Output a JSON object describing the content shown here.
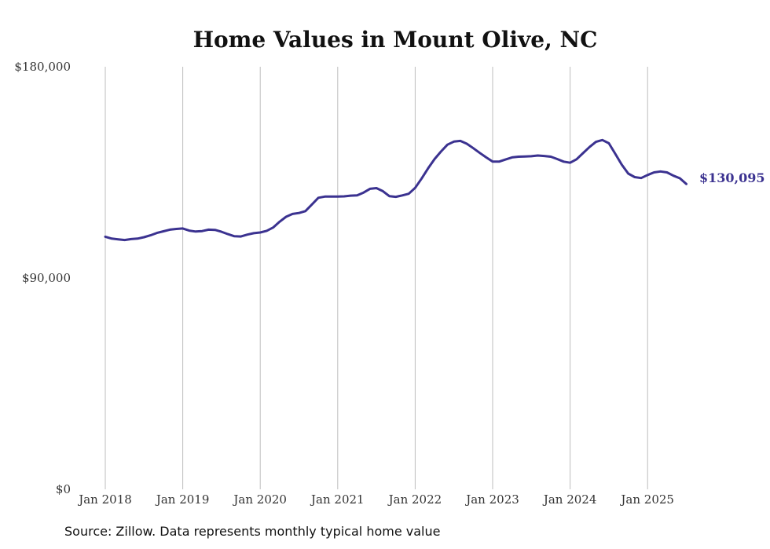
{
  "chart_data": {
    "type": "line",
    "title": "Home Values in Mount Olive, NC",
    "xlabel": "",
    "ylabel": "",
    "x_ticks": [
      "Jan 2018",
      "Jan 2019",
      "Jan 2020",
      "Jan 2021",
      "Jan 2022",
      "Jan 2023",
      "Jan 2024",
      "Jan 2025"
    ],
    "y_ticks": [
      "$0",
      "$90,000",
      "$180,000"
    ],
    "ylim": [
      0,
      180000
    ],
    "grid": "vertical",
    "line_color": "#3b3290",
    "end_label": "$130,095",
    "series": [
      {
        "x": [
          "2018-01",
          "2018-02",
          "2018-03",
          "2018-04",
          "2018-05",
          "2018-06",
          "2018-07",
          "2018-08",
          "2018-09",
          "2018-10",
          "2018-11",
          "2018-12",
          "2019-01",
          "2019-02",
          "2019-03",
          "2019-04",
          "2019-05",
          "2019-06",
          "2019-07",
          "2019-08",
          "2019-09",
          "2019-10",
          "2019-11",
          "2019-12",
          "2020-01",
          "2020-02",
          "2020-03",
          "2020-04",
          "2020-05",
          "2020-06",
          "2020-07",
          "2020-08",
          "2020-09",
          "2020-10",
          "2020-11",
          "2020-12",
          "2021-01",
          "2021-02",
          "2021-03",
          "2021-04",
          "2021-05",
          "2021-06",
          "2021-07",
          "2021-08",
          "2021-09",
          "2021-10",
          "2021-11",
          "2021-12",
          "2022-01",
          "2022-02",
          "2022-03",
          "2022-04",
          "2022-05",
          "2022-06",
          "2022-07",
          "2022-08",
          "2022-09",
          "2022-10",
          "2022-11",
          "2022-12",
          "2023-01",
          "2023-02",
          "2023-03",
          "2023-04",
          "2023-05",
          "2023-06",
          "2023-07",
          "2023-08",
          "2023-09",
          "2023-10",
          "2023-11",
          "2023-12",
          "2024-01",
          "2024-02",
          "2024-03",
          "2024-04",
          "2024-05",
          "2024-06",
          "2024-07",
          "2024-08",
          "2024-09",
          "2024-10",
          "2024-11",
          "2024-12",
          "2025-01",
          "2025-02",
          "2025-03",
          "2025-04",
          "2025-05",
          "2025-06",
          "2025-07"
        ],
        "values": [
          107600,
          106800,
          106500,
          106200,
          106600,
          106800,
          107400,
          108200,
          109200,
          109900,
          110600,
          110900,
          111100,
          110200,
          109800,
          110000,
          110600,
          110500,
          109700,
          108700,
          107800,
          107700,
          108500,
          109100,
          109400,
          110100,
          111500,
          114000,
          116100,
          117300,
          117700,
          118500,
          121300,
          124200,
          124700,
          124700,
          124700,
          124800,
          125100,
          125200,
          126400,
          128000,
          128300,
          127000,
          124900,
          124600,
          125200,
          125900,
          128400,
          132400,
          136700,
          140700,
          143900,
          146800,
          148100,
          148400,
          147200,
          145300,
          143300,
          141400,
          139600,
          139600,
          140500,
          141400,
          141700,
          141800,
          141900,
          142200,
          142000,
          141700,
          140700,
          139600,
          139100,
          140600,
          143200,
          145800,
          148000,
          148800,
          147400,
          142900,
          138300,
          134500,
          133000,
          132600,
          133900,
          135000,
          135400,
          135000,
          133600,
          132500,
          130095
        ]
      }
    ]
  },
  "source_note": "Source: Zillow. Data represents monthly typical home value"
}
